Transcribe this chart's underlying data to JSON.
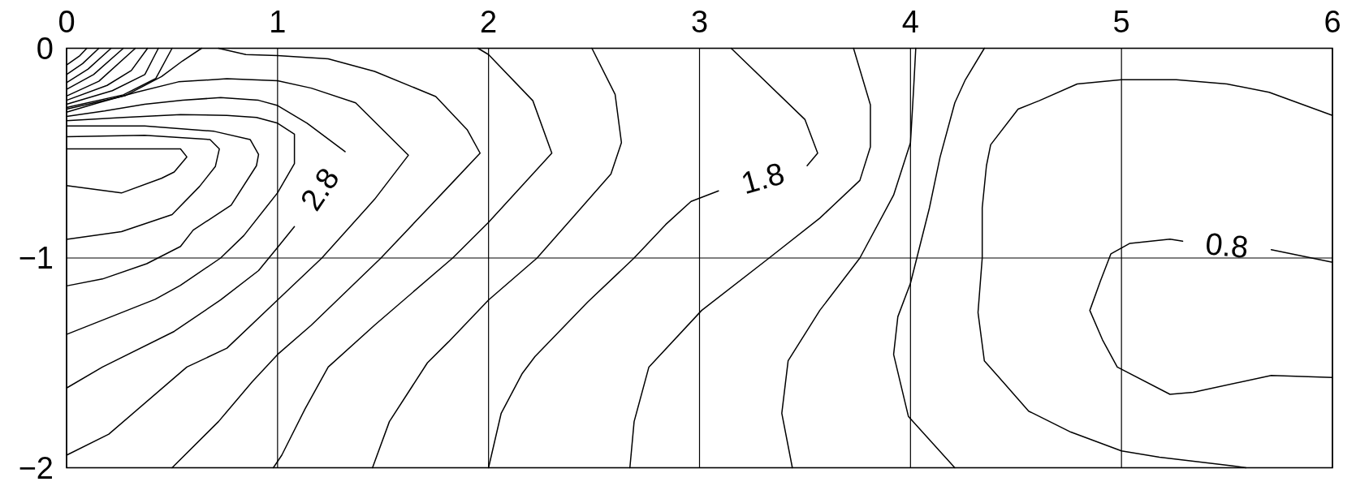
{
  "chart_data": {
    "type": "line",
    "xlim": [
      0,
      6
    ],
    "ylim": [
      -2,
      0
    ],
    "xticks": [
      0,
      1,
      2,
      3,
      4,
      5,
      6
    ],
    "yticks": [
      0,
      -1,
      -2
    ],
    "grid": true,
    "series": [
      {
        "color": "#000000",
        "x": [
          0,
          0.26,
          0.45,
          0.51,
          0.57,
          0.54,
          0
        ],
        "values": [
          -0.655,
          -0.69,
          -0.62,
          -0.59,
          -0.518,
          -0.48,
          -0.48
        ]
      },
      {
        "color": "#000000",
        "x": [
          0,
          0.26,
          0.5,
          0.63,
          0.705,
          0.724,
          0.68,
          0.37,
          0
        ],
        "values": [
          -0.911,
          -0.874,
          -0.793,
          -0.659,
          -0.564,
          -0.48,
          -0.435,
          -0.415,
          -0.422
        ]
      },
      {
        "color": "#000000",
        "x": [
          0,
          0.17,
          0.38,
          0.54,
          0.6,
          0.78,
          0.9,
          0.91,
          0.87,
          0.7,
          0.37,
          0
        ],
        "values": [
          -1.133,
          -1.1,
          -1.027,
          -0.945,
          -0.867,
          -0.748,
          -0.56,
          -0.506,
          -0.435,
          -0.396,
          -0.37,
          -0.37
        ]
      },
      {
        "color": "#000000",
        "x": [
          0,
          0.42,
          0.54,
          0.73,
          0.84,
          1.0,
          1.08,
          1.08,
          1.0,
          0.9,
          0.76,
          0.54,
          0.27,
          0
        ],
        "values": [
          -1.364,
          -1.197,
          -1.13,
          -1.0,
          -0.893,
          -0.689,
          -0.55,
          -0.41,
          -0.357,
          -0.33,
          -0.32,
          -0.316,
          -0.33,
          -0.345
        ]
      },
      {
        "name": "2.8",
        "color": "#000000",
        "x": [
          0,
          0.17,
          0.51,
          0.73,
          0.91,
          1.0,
          1.08,
          1.2,
          1.32,
          1.14,
          1.0,
          0.91,
          0.73,
          0.55,
          0.37,
          0.18,
          0
        ],
        "values": [
          -1.62,
          -1.52,
          -1.35,
          -1.2,
          -1.06,
          -0.95,
          -0.85,
          null,
          -0.493,
          -0.357,
          -0.273,
          -0.248,
          -0.235,
          -0.248,
          -0.267,
          -0.299,
          -0.325
        ]
      },
      {
        "color": "#000000",
        "x": [
          0,
          0.2,
          0.57,
          0.76,
          1.0,
          1.21,
          1.46,
          1.62,
          1.37,
          1.16,
          1.0,
          0.76,
          0.53,
          0.33,
          0.15,
          0
        ],
        "values": [
          -1.94,
          -1.84,
          -1.52,
          -1.43,
          -1.2,
          -1.0,
          -0.72,
          -0.51,
          -0.26,
          -0.19,
          -0.155,
          -0.145,
          -0.16,
          -0.21,
          -0.26,
          -0.305
        ]
      },
      {
        "color": "#000000",
        "x": [
          0.5,
          0.72,
          0.88,
          1.0,
          1.16,
          1.49,
          1.81,
          1.96,
          1.9,
          1.75,
          1.46,
          1.24,
          1.0,
          0.85,
          0.72
        ],
        "values": [
          -2.0,
          -1.78,
          -1.59,
          -1.46,
          -1.32,
          -1.0,
          -0.66,
          -0.5,
          -0.39,
          -0.23,
          -0.11,
          -0.05,
          -0.035,
          -0.03,
          0
        ]
      },
      {
        "color": "#000000",
        "x": [
          0.98,
          1.02,
          1.13,
          1.24,
          1.46,
          1.83,
          2.0,
          2.3,
          2.21,
          2.0,
          1.95
        ],
        "values": [
          -2.0,
          -1.94,
          -1.72,
          -1.52,
          -1.32,
          -1.0,
          -0.83,
          -0.5,
          -0.25,
          -0.03,
          0
        ]
      },
      {
        "color": "#000000",
        "x": [
          1.45,
          1.53,
          1.71,
          1.81,
          2.0,
          2.23,
          2.58,
          2.63,
          2.6,
          2.49
        ],
        "values": [
          -2.0,
          -1.78,
          -1.5,
          -1.4,
          -1.2,
          -1.0,
          -0.6,
          -0.45,
          -0.22,
          0
        ]
      },
      {
        "name": "1.8",
        "color": "#000000",
        "x": [
          2.0,
          2.06,
          2.16,
          2.22,
          2.47,
          2.69,
          2.84,
          2.96,
          3.09,
          3.3,
          3.51,
          3.56,
          3.5,
          3.15
        ],
        "values": [
          -2.0,
          -1.74,
          -1.55,
          -1.47,
          -1.21,
          -1.0,
          -0.84,
          -0.73,
          -0.68,
          null,
          -0.56,
          -0.5,
          -0.34,
          0
        ]
      },
      {
        "color": "#000000",
        "x": [
          2.67,
          2.69,
          2.76,
          3.01,
          3.33,
          3.57,
          3.76,
          3.81,
          3.81,
          3.73
        ],
        "values": [
          -2.0,
          -1.78,
          -1.52,
          -1.25,
          -1.0,
          -0.81,
          -0.63,
          -0.47,
          -0.27,
          0
        ]
      },
      {
        "color": "#000000",
        "x": [
          3.44,
          3.39,
          3.42,
          3.57,
          3.76,
          3.92,
          4.0,
          4.015,
          4.025
        ],
        "values": [
          -2.0,
          -1.74,
          -1.49,
          -1.25,
          -1.0,
          -0.7,
          -0.45,
          -0.19,
          0
        ]
      },
      {
        "color": "#000000",
        "x": [
          4.21,
          3.99,
          3.92,
          3.94,
          4.0,
          4.03,
          4.09,
          4.14,
          4.21,
          4.26,
          4.35
        ],
        "values": [
          -2.0,
          -1.755,
          -1.46,
          -1.28,
          -1.12,
          -1.0,
          -0.76,
          -0.52,
          -0.26,
          -0.15,
          0
        ]
      },
      {
        "color": "#000000",
        "x": [
          6.0,
          5.7,
          5.5,
          5.26,
          5.0,
          4.79,
          4.61,
          4.51,
          4.38,
          4.36,
          4.34,
          4.34,
          4.32,
          4.35,
          4.42,
          4.56,
          4.76,
          5.0,
          5.18,
          5.52,
          5.59
        ],
        "values": [
          -0.32,
          -0.21,
          -0.17,
          -0.15,
          -0.15,
          -0.17,
          -0.25,
          -0.29,
          -0.46,
          -0.56,
          -0.76,
          -1.0,
          -1.26,
          -1.49,
          -1.57,
          -1.73,
          -1.83,
          -1.92,
          -1.95,
          -1.99,
          -2.0
        ]
      },
      {
        "name": "0.8",
        "color": "#000000",
        "x": [
          6.0,
          5.71,
          5.5,
          5.29,
          5.23,
          5.04,
          4.95,
          4.9,
          4.85,
          4.91,
          4.98,
          5.23,
          5.34,
          5.71,
          6.0
        ],
        "values": [
          -1.02,
          -0.96,
          null,
          -0.92,
          -0.91,
          -0.93,
          -0.98,
          -1.11,
          -1.25,
          -1.39,
          -1.52,
          -1.65,
          -1.64,
          -1.56,
          -1.57
        ]
      },
      {
        "color": "#000000",
        "x": [
          0.64,
          0.55,
          0.45,
          0.28,
          0
        ],
        "values": [
          0,
          -0.06,
          -0.135,
          -0.225,
          -0.29
        ]
      },
      {
        "color": "#000000",
        "x": [
          0.5,
          0.423,
          0.269,
          0
        ],
        "values": [
          0,
          -0.144,
          -0.222,
          -0.282
        ]
      },
      {
        "color": "#000000",
        "x": [
          0.435,
          0.371,
          0.217,
          0
        ],
        "values": [
          0,
          -0.125,
          -0.202,
          -0.267
        ]
      },
      {
        "color": "#000000",
        "x": [
          0.384,
          0.307,
          0.192,
          0
        ],
        "values": [
          0,
          -0.106,
          -0.177,
          -0.248
        ]
      },
      {
        "color": "#000000",
        "x": [
          0.326,
          0.153,
          0
        ],
        "values": [
          0,
          -0.157,
          -0.228
        ]
      },
      {
        "color": "#000000",
        "x": [
          0.269,
          0.128,
          0
        ],
        "values": [
          0,
          -0.125,
          -0.196
        ]
      },
      {
        "color": "#000000",
        "x": [
          0.211,
          0.102,
          0
        ],
        "values": [
          0,
          -0.099,
          -0.164
        ]
      },
      {
        "color": "#000000",
        "x": [
          0.153,
          0.076,
          0
        ],
        "values": [
          0,
          -0.073,
          -0.125
        ]
      },
      {
        "color": "#000000",
        "x": [
          0.096,
          0.063,
          0
        ],
        "values": [
          0,
          -0.035,
          -0.08
        ]
      }
    ]
  }
}
